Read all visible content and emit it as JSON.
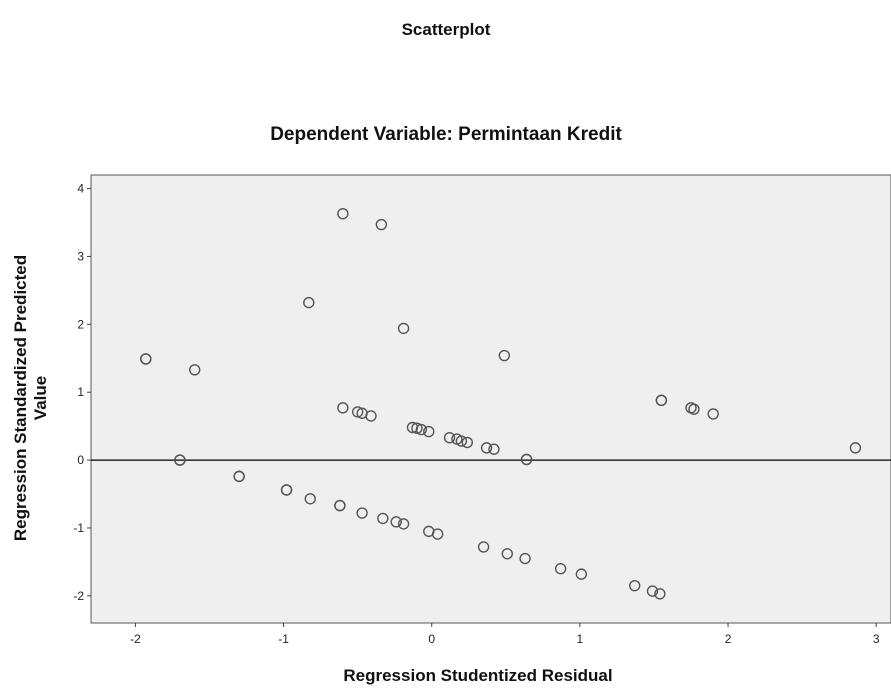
{
  "chart_data": {
    "type": "scatter",
    "title": "Scatterplot",
    "subtitle": "Dependent Variable: Permintaan Kredit",
    "xlabel": "Regression Studentized Residual",
    "ylabel_line1": "Regression Standardized Predicted",
    "ylabel_line2": "Value",
    "xlim": [
      -2.3,
      3.1
    ],
    "ylim": [
      -2.4,
      4.2
    ],
    "x_ticks": [
      -2,
      -1,
      0,
      1,
      2,
      3
    ],
    "y_ticks": [
      -2,
      -1,
      0,
      1,
      2,
      3,
      4
    ],
    "reference_line_y": 0,
    "colors": {
      "plot_background": "#efefef",
      "marker_stroke": "#555555",
      "reference_line": "#000000"
    },
    "points": [
      {
        "x": -0.6,
        "y": 3.63
      },
      {
        "x": -0.34,
        "y": 3.47
      },
      {
        "x": -0.83,
        "y": 2.32
      },
      {
        "x": -0.19,
        "y": 1.94
      },
      {
        "x": 0.49,
        "y": 1.54
      },
      {
        "x": -1.93,
        "y": 1.49
      },
      {
        "x": -1.93,
        "y": 1.49
      },
      {
        "x": -1.6,
        "y": 1.33
      },
      {
        "x": 1.55,
        "y": 0.88
      },
      {
        "x": 1.55,
        "y": 0.88
      },
      {
        "x": 1.75,
        "y": 0.77
      },
      {
        "x": 1.77,
        "y": 0.75
      },
      {
        "x": 1.9,
        "y": 0.68
      },
      {
        "x": -0.6,
        "y": 0.77
      },
      {
        "x": -0.5,
        "y": 0.71
      },
      {
        "x": -0.47,
        "y": 0.69
      },
      {
        "x": -0.41,
        "y": 0.65
      },
      {
        "x": -0.13,
        "y": 0.48
      },
      {
        "x": -0.1,
        "y": 0.47
      },
      {
        "x": -0.07,
        "y": 0.45
      },
      {
        "x": -0.02,
        "y": 0.42
      },
      {
        "x": 0.12,
        "y": 0.33
      },
      {
        "x": 0.17,
        "y": 0.31
      },
      {
        "x": 0.2,
        "y": 0.28
      },
      {
        "x": 0.24,
        "y": 0.26
      },
      {
        "x": 0.37,
        "y": 0.18
      },
      {
        "x": 0.42,
        "y": 0.16
      },
      {
        "x": 0.64,
        "y": 0.01
      },
      {
        "x": 0.64,
        "y": 0.01
      },
      {
        "x": 2.86,
        "y": 0.18
      },
      {
        "x": -1.7,
        "y": 0.0
      },
      {
        "x": -1.7,
        "y": 0.0
      },
      {
        "x": -1.3,
        "y": -0.24
      },
      {
        "x": -1.3,
        "y": -0.24
      },
      {
        "x": -0.98,
        "y": -0.44
      },
      {
        "x": -0.98,
        "y": -0.44
      },
      {
        "x": -0.82,
        "y": -0.57
      },
      {
        "x": -0.62,
        "y": -0.67
      },
      {
        "x": -0.62,
        "y": -0.67
      },
      {
        "x": -0.47,
        "y": -0.78
      },
      {
        "x": -0.33,
        "y": -0.86
      },
      {
        "x": -0.24,
        "y": -0.91
      },
      {
        "x": -0.19,
        "y": -0.94
      },
      {
        "x": -0.02,
        "y": -1.05
      },
      {
        "x": 0.04,
        "y": -1.09
      },
      {
        "x": 0.35,
        "y": -1.28
      },
      {
        "x": 0.51,
        "y": -1.38
      },
      {
        "x": 0.63,
        "y": -1.45
      },
      {
        "x": 0.87,
        "y": -1.6
      },
      {
        "x": 1.01,
        "y": -1.68
      },
      {
        "x": 1.37,
        "y": -1.85
      },
      {
        "x": 1.49,
        "y": -1.93
      },
      {
        "x": 1.54,
        "y": -1.97
      }
    ]
  }
}
